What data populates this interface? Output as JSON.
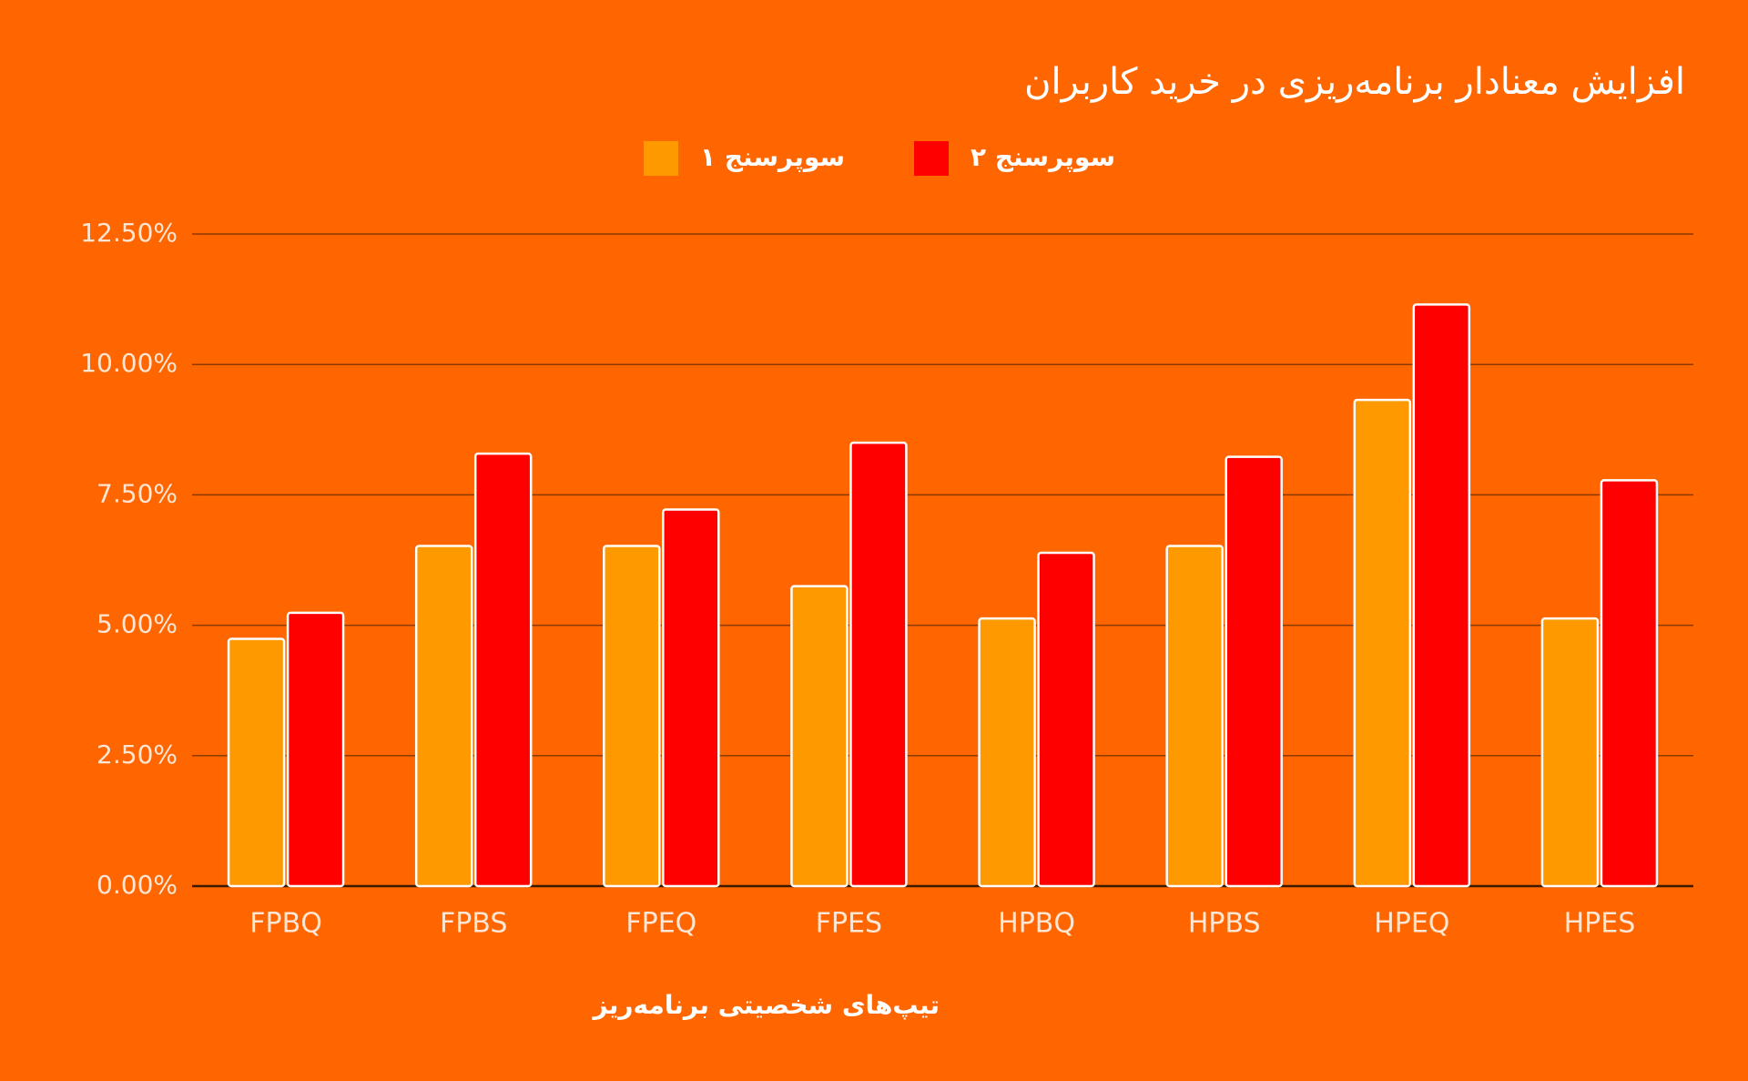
{
  "chart_data": {
    "type": "bar",
    "title": "افزایش معنادار برنامه‌ریزی در خرید کاربران",
    "x_label": "تیپ‌های شخصیتی برنامه‌ریز",
    "categories": [
      "FPBQ",
      "FPBS",
      "FPEQ",
      "FPES",
      "HPBQ",
      "HPBS",
      "HPEQ",
      "HPES"
    ],
    "series": [
      {
        "name": "سوپرسنج ۱",
        "color": "#ff9900",
        "values": [
          4.74,
          6.52,
          6.52,
          5.75,
          5.13,
          6.52,
          9.32,
          5.13
        ]
      },
      {
        "name": "سوپرسنج ۲",
        "color": "#ff0000",
        "values": [
          5.24,
          8.29,
          7.22,
          8.5,
          6.39,
          8.23,
          11.15,
          7.78
        ]
      }
    ],
    "ylim": [
      0,
      12.5
    ],
    "yticks": [
      {
        "value": 0,
        "label": "0.00%"
      },
      {
        "value": 2.5,
        "label": "2.50%"
      },
      {
        "value": 5,
        "label": "5.00%"
      },
      {
        "value": 7.5,
        "label": "7.50%"
      },
      {
        "value": 10,
        "label": "10.00%"
      },
      {
        "value": 12.5,
        "label": "12.50%"
      }
    ],
    "grid": true
  }
}
